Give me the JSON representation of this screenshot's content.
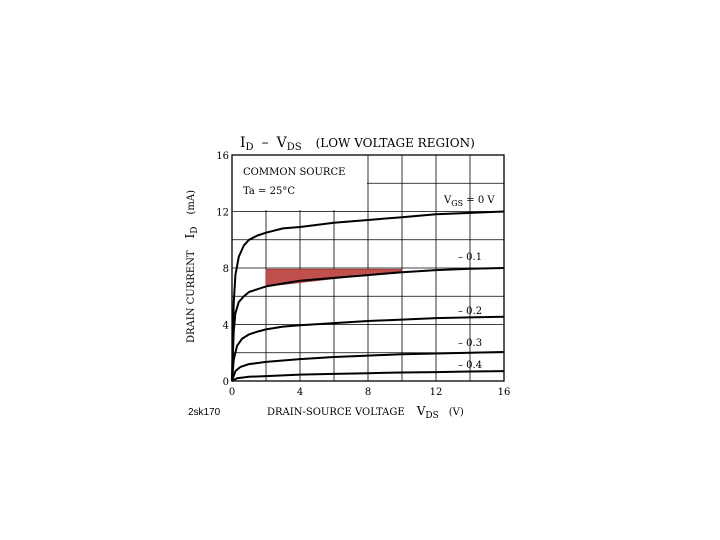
{
  "chart_data": {
    "type": "line",
    "title": {
      "main": "I",
      "main_sub": "D",
      "dash": "–",
      "v": "V",
      "v_sub": "DS",
      "suffix": "(LOW VOLTAGE REGION)"
    },
    "xlabel": {
      "text": "DRAIN-SOURCE VOLTAGE",
      "sym": "V",
      "sub": "DS",
      "unit": "(V)"
    },
    "ylabel": {
      "text": "DRAIN CURRENT",
      "sym": "I",
      "sub": "D",
      "unit": "(mA)"
    },
    "xlim": [
      0,
      16
    ],
    "ylim": [
      0,
      16
    ],
    "x_ticks": [
      "0",
      "4",
      "8",
      "12",
      "16"
    ],
    "y_ticks": [
      "0",
      "4",
      "8",
      "12",
      "16"
    ],
    "grid": true,
    "legend_box": {
      "line1": "COMMON SOURCE",
      "line2": "Ta = 25°C"
    },
    "series": [
      {
        "name": "VGS = 0 V",
        "label_main": "V",
        "label_sub": "GS",
        "label_suffix": " = 0 V",
        "x": [
          0,
          0.1,
          0.2,
          0.4,
          0.7,
          1,
          1.5,
          2,
          3,
          4,
          6,
          8,
          10,
          12,
          14,
          16
        ],
        "y": [
          0,
          5.5,
          7.5,
          8.8,
          9.6,
          10.0,
          10.3,
          10.5,
          10.8,
          10.9,
          11.2,
          11.4,
          11.6,
          11.8,
          11.9,
          12.0
        ]
      },
      {
        "name": "-0.1",
        "label_main": "– 0.1",
        "x": [
          0,
          0.1,
          0.2,
          0.4,
          0.7,
          1,
          1.5,
          2,
          3,
          4,
          6,
          8,
          10,
          12,
          14,
          16
        ],
        "y": [
          0,
          3.5,
          4.8,
          5.6,
          6.0,
          6.3,
          6.5,
          6.7,
          6.9,
          7.1,
          7.3,
          7.5,
          7.7,
          7.85,
          7.95,
          8.0
        ]
      },
      {
        "name": "-0.2",
        "label_main": "– 0.2",
        "x": [
          0,
          0.1,
          0.3,
          0.6,
          1,
          1.5,
          2,
          3,
          4,
          6,
          8,
          10,
          12,
          14,
          16
        ],
        "y": [
          0,
          1.5,
          2.5,
          3.0,
          3.3,
          3.5,
          3.65,
          3.85,
          3.95,
          4.1,
          4.25,
          4.35,
          4.45,
          4.5,
          4.55
        ]
      },
      {
        "name": "-0.3",
        "label_main": "– 0.3",
        "x": [
          0,
          0.2,
          0.5,
          1,
          2,
          3,
          4,
          6,
          8,
          10,
          12,
          14,
          16
        ],
        "y": [
          0,
          0.7,
          1.0,
          1.2,
          1.35,
          1.45,
          1.55,
          1.7,
          1.8,
          1.9,
          1.95,
          2.0,
          2.05
        ]
      },
      {
        "name": "-0.4",
        "label_main": "– 0.4",
        "x": [
          0,
          0.3,
          1,
          2,
          4,
          6,
          8,
          10,
          12,
          14,
          16
        ],
        "y": [
          0,
          0.2,
          0.3,
          0.35,
          0.45,
          0.5,
          0.55,
          0.6,
          0.63,
          0.67,
          0.7
        ]
      }
    ],
    "highlight_region": {
      "color": "#c0504d",
      "x": [
        2,
        2,
        2.5,
        4,
        6,
        8,
        10,
        10,
        2
      ],
      "y": [
        6.7,
        7.9,
        7.9,
        7.9,
        7.9,
        7.9,
        7.9,
        7.8,
        6.7
      ]
    },
    "caption": "2sk170"
  }
}
